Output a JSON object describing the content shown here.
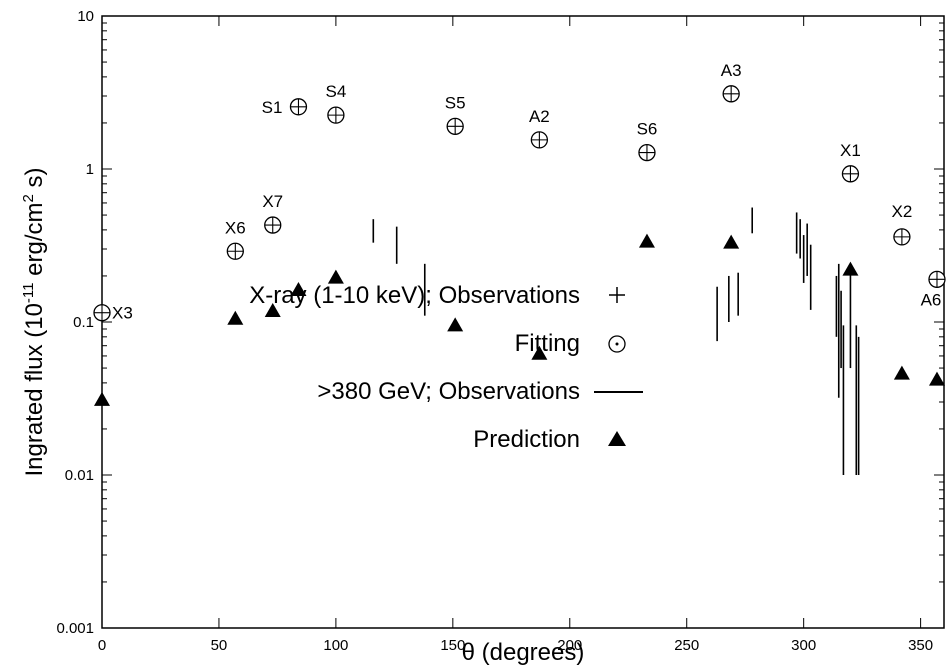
{
  "chart_data": {
    "type": "scatter",
    "xlabel": "θ (degrees)",
    "ylabel_main": "Ingrated flux (10",
    "ylabel_exp": "-11",
    "ylabel_mid": " erg/cm",
    "ylabel_exp2": "2",
    "ylabel_end": " s)",
    "xlim": [
      0,
      360
    ],
    "ylim": [
      0.001,
      10
    ],
    "yscale": "log",
    "xticks": [
      0,
      50,
      100,
      150,
      200,
      250,
      300,
      350
    ],
    "xtick_labels": [
      "0",
      "50",
      "100",
      "150",
      "200",
      "250",
      "300",
      "350"
    ],
    "yticks": [
      0.001,
      0.01,
      0.1,
      1,
      10
    ],
    "ytick_labels": [
      "0.001",
      "0.01",
      "0.1",
      "1",
      "10"
    ],
    "legend": [
      {
        "label": "X-ray (1-10 keV); Observations",
        "marker": "plus"
      },
      {
        "label": "Fitting",
        "marker": "circle-dot"
      },
      {
        "label": ">380 GeV; Observations",
        "marker": "line"
      },
      {
        "label": "Prediction",
        "marker": "triangle"
      }
    ],
    "fitting": [
      {
        "name": "X3",
        "x": 0,
        "y": 0.115
      },
      {
        "name": "X6",
        "x": 57,
        "y": 0.29
      },
      {
        "name": "X7",
        "x": 73,
        "y": 0.43
      },
      {
        "name": "S1",
        "x": 84,
        "y": 2.55
      },
      {
        "name": "S4",
        "x": 100,
        "y": 2.25
      },
      {
        "name": "S5",
        "x": 151,
        "y": 1.9
      },
      {
        "name": "A2",
        "x": 187,
        "y": 1.55
      },
      {
        "name": "S6",
        "x": 233,
        "y": 1.28
      },
      {
        "name": "A3",
        "x": 269,
        "y": 3.1
      },
      {
        "name": "X1",
        "x": 320,
        "y": 0.93
      },
      {
        "name": "X2",
        "x": 342,
        "y": 0.36
      },
      {
        "name": "A6",
        "x": 357,
        "y": 0.19
      }
    ],
    "prediction": [
      {
        "x": 0,
        "y": 0.031
      },
      {
        "x": 57,
        "y": 0.105
      },
      {
        "x": 73,
        "y": 0.118
      },
      {
        "x": 84,
        "y": 0.162
      },
      {
        "x": 100,
        "y": 0.195
      },
      {
        "x": 151,
        "y": 0.095
      },
      {
        "x": 187,
        "y": 0.062
      },
      {
        "x": 233,
        "y": 0.335
      },
      {
        "x": 269,
        "y": 0.33
      },
      {
        "x": 320,
        "y": 0.22
      },
      {
        "x": 342,
        "y": 0.046
      },
      {
        "x": 357,
        "y": 0.042
      }
    ],
    "tev_observations": [
      {
        "x": 116,
        "low": 0.33,
        "high": 0.47
      },
      {
        "x": 126,
        "low": 0.24,
        "high": 0.42
      },
      {
        "x": 138,
        "low": 0.11,
        "high": 0.24
      },
      {
        "x": 263,
        "low": 0.075,
        "high": 0.17
      },
      {
        "x": 268,
        "low": 0.1,
        "high": 0.2
      },
      {
        "x": 272,
        "low": 0.11,
        "high": 0.21
      },
      {
        "x": 278,
        "low": 0.38,
        "high": 0.56
      },
      {
        "x": 297,
        "low": 0.28,
        "high": 0.52
      },
      {
        "x": 298.5,
        "low": 0.26,
        "high": 0.47
      },
      {
        "x": 300,
        "low": 0.18,
        "high": 0.37
      },
      {
        "x": 301.5,
        "low": 0.2,
        "high": 0.44
      },
      {
        "x": 303,
        "low": 0.12,
        "high": 0.32
      },
      {
        "x": 314,
        "low": 0.08,
        "high": 0.2
      },
      {
        "x": 315,
        "low": 0.032,
        "high": 0.24
      },
      {
        "x": 316,
        "low": 0.05,
        "high": 0.16
      },
      {
        "x": 317,
        "low": 0.01,
        "high": 0.095
      },
      {
        "x": 320,
        "low": 0.05,
        "high": 0.22
      },
      {
        "x": 322.5,
        "low": 0.01,
        "high": 0.095
      },
      {
        "x": 323.5,
        "low": 0.01,
        "high": 0.08
      }
    ]
  }
}
